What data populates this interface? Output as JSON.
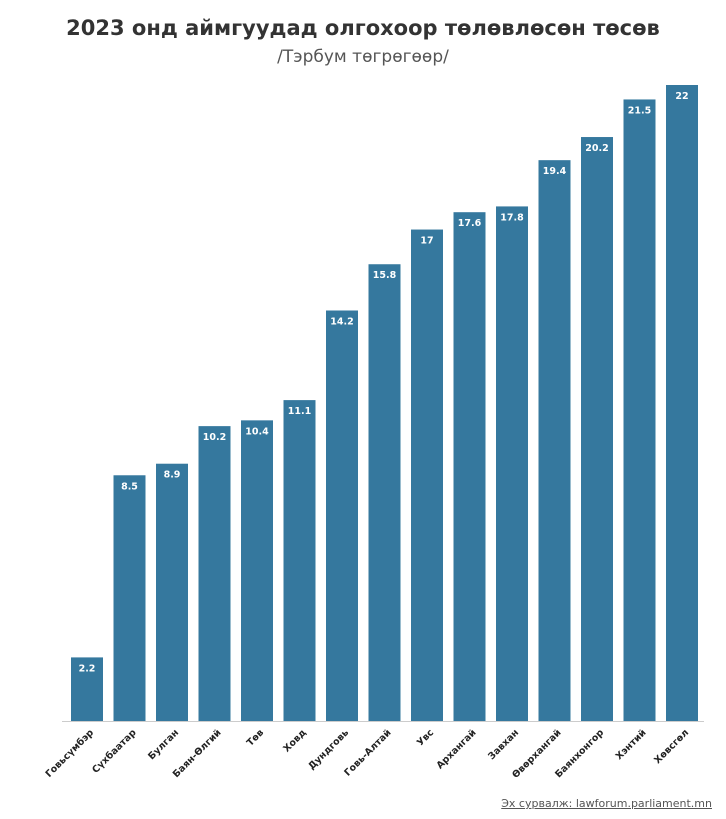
{
  "title": "2023 онд аймгуудад олгохоор төлөвлөсөн төсөв",
  "subtitle": "/Тэрбум төгрөгөөр/",
  "source": "Эх сурвалж: lawforum.parliament.mn",
  "colors": {
    "bar": "#35789e",
    "axis": "#cccccc",
    "label_text": "#ffffff",
    "tick_text": "#222222"
  },
  "chart_data": {
    "type": "bar",
    "title": "2023 онд аймгуудад олгохоор төлөвлөсөн төсөв",
    "subtitle": "/Тэрбум төгрөгөөр/",
    "xlabel": "",
    "ylabel": "",
    "ylim": [
      0,
      22
    ],
    "grid": false,
    "categories": [
      "Говьсүмбэр",
      "Сүхбаатар",
      "Булган",
      "Баян-Өлгий",
      "Төв",
      "Ховд",
      "Дундговь",
      "Говь-Алтай",
      "Увс",
      "Архангай",
      "Завхан",
      "Өвөрхангай",
      "Баянхонгор",
      "Хэнтий",
      "Хөвсгөл"
    ],
    "values": [
      2.2,
      8.5,
      8.9,
      10.2,
      10.4,
      11.1,
      14.2,
      15.8,
      17,
      17.6,
      17.8,
      19.4,
      20.2,
      21.5,
      22
    ]
  }
}
